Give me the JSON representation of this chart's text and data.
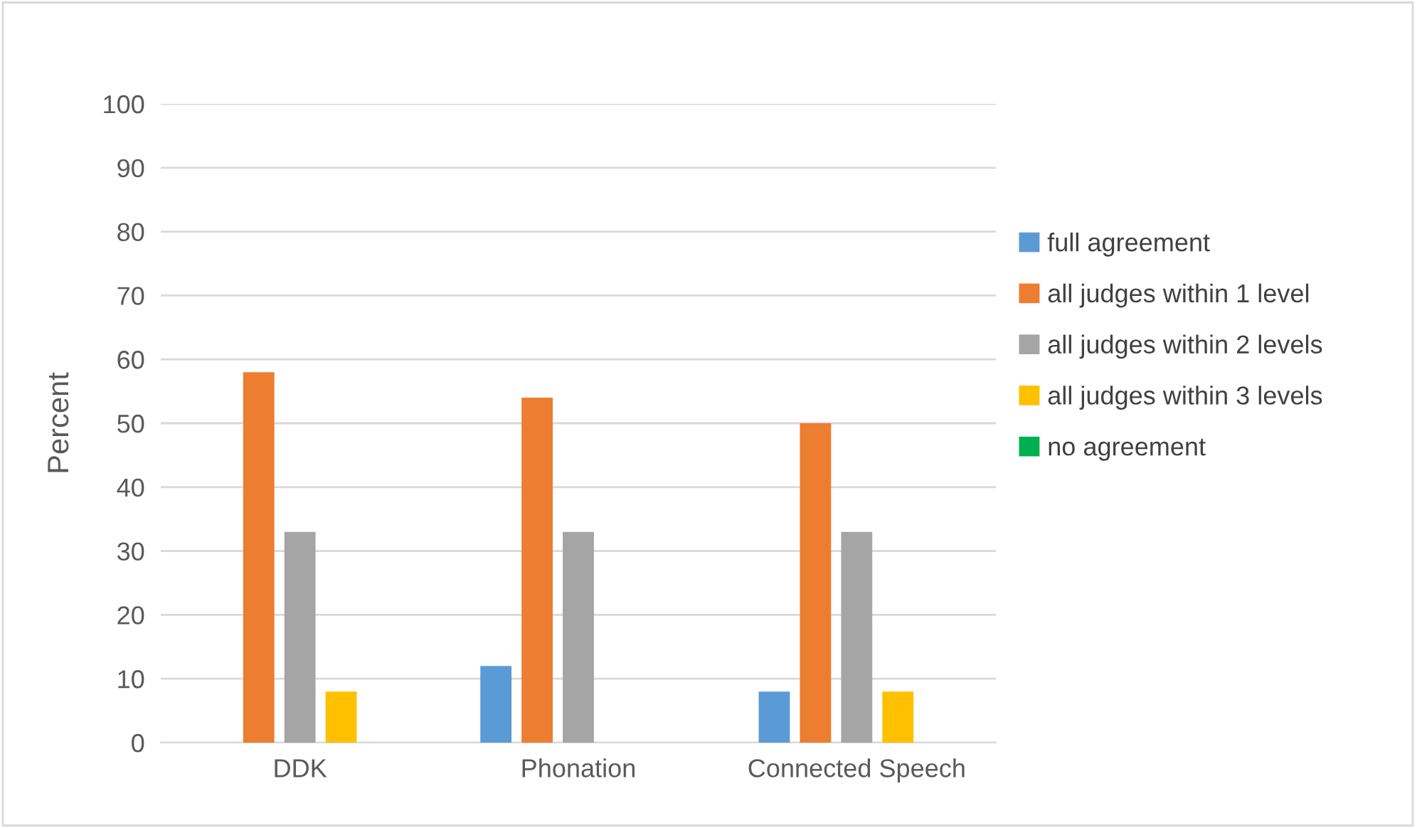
{
  "chart_data": {
    "type": "bar",
    "ylabel": "Percent",
    "categories": [
      "DDK",
      "Phonation",
      "Connected Speech"
    ],
    "series": [
      {
        "name": "full agreement",
        "color": "#5b9bd5",
        "values": [
          0,
          12,
          8
        ]
      },
      {
        "name": "all judges within 1 level",
        "color": "#ed7d31",
        "values": [
          58,
          54,
          50
        ]
      },
      {
        "name": "all judges within 2 levels",
        "color": "#a5a5a5",
        "values": [
          33,
          33,
          33
        ]
      },
      {
        "name": "all judges within 3 levels",
        "color": "#ffc000",
        "values": [
          8,
          0,
          8
        ]
      },
      {
        "name": "no agreement",
        "color": "#00b050",
        "values": [
          0,
          0,
          0
        ]
      }
    ],
    "ylim": [
      0,
      100
    ],
    "yticks": [
      0,
      10,
      20,
      30,
      40,
      50,
      60,
      70,
      80,
      90,
      100
    ],
    "grid": "y",
    "legend": "right"
  }
}
